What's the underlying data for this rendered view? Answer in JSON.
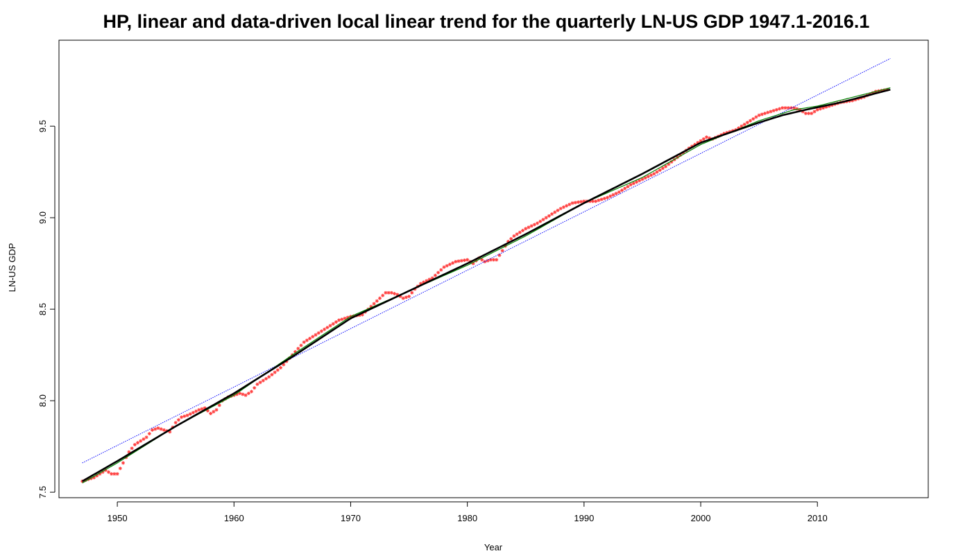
{
  "chart_data": {
    "type": "line",
    "title": "HP, linear and data-driven local linear trend for the quarterly LN-US GDP 1947.1-2016.1",
    "xlabel": "Year",
    "ylabel": "LN-US GDP",
    "xlim": [
      1945,
      2019.5
    ],
    "ylim": [
      7.47,
      9.97
    ],
    "xticks": [
      1950,
      1960,
      1970,
      1980,
      1990,
      2000,
      2010
    ],
    "xtick_labels": [
      "1950",
      "1960",
      "1970",
      "1980",
      "1990",
      "2000",
      "2010"
    ],
    "yticks": [
      7.5,
      8.0,
      8.5,
      9.0,
      9.5
    ],
    "ytick_labels": [
      "7.5",
      "8.0",
      "8.5",
      "9.0",
      "9.5"
    ],
    "grid": false,
    "series": [
      {
        "role": "observed",
        "color": "#ff4040",
        "style": "points",
        "x": [
          1947.0,
          1948.0,
          1949.0,
          1949.5,
          1950.0,
          1950.5,
          1951.0,
          1951.5,
          1952.0,
          1952.5,
          1953.0,
          1953.5,
          1954.0,
          1954.5,
          1955.0,
          1955.5,
          1956.0,
          1957.0,
          1957.5,
          1958.0,
          1958.5,
          1959.0,
          1959.5,
          1960.0,
          1960.5,
          1961.0,
          1961.5,
          1962.0,
          1963.0,
          1964.0,
          1965.0,
          1966.0,
          1967.0,
          1968.0,
          1969.0,
          1970.0,
          1971.0,
          1972.0,
          1973.0,
          1973.5,
          1974.0,
          1974.5,
          1975.0,
          1975.5,
          1976.0,
          1977.0,
          1978.0,
          1979.0,
          1980.0,
          1980.5,
          1981.0,
          1981.5,
          1982.0,
          1982.5,
          1983.0,
          1983.5,
          1984.0,
          1985.0,
          1986.0,
          1987.0,
          1988.0,
          1989.0,
          1990.0,
          1990.5,
          1991.0,
          1992.0,
          1993.0,
          1994.0,
          1995.0,
          1996.0,
          1997.0,
          1998.0,
          1999.0,
          2000.0,
          2000.5,
          2001.0,
          2002.0,
          2003.0,
          2004.0,
          2005.0,
          2006.0,
          2007.0,
          2008.0,
          2008.5,
          2009.0,
          2009.5,
          2010.0,
          2011.0,
          2012.0,
          2013.0,
          2014.0,
          2015.0,
          2016.0
        ],
        "y": [
          7.56,
          7.58,
          7.62,
          7.6,
          7.6,
          7.66,
          7.72,
          7.76,
          7.78,
          7.8,
          7.84,
          7.85,
          7.84,
          7.83,
          7.88,
          7.91,
          7.92,
          7.95,
          7.96,
          7.93,
          7.95,
          8.0,
          8.02,
          8.03,
          8.04,
          8.03,
          8.05,
          8.09,
          8.13,
          8.18,
          8.25,
          8.32,
          8.36,
          8.4,
          8.44,
          8.46,
          8.47,
          8.53,
          8.59,
          8.59,
          8.58,
          8.56,
          8.57,
          8.61,
          8.64,
          8.67,
          8.73,
          8.76,
          8.77,
          8.75,
          8.78,
          8.76,
          8.77,
          8.77,
          8.82,
          8.87,
          8.9,
          8.94,
          8.97,
          9.01,
          9.05,
          9.08,
          9.09,
          9.09,
          9.09,
          9.11,
          9.14,
          9.18,
          9.21,
          9.24,
          9.28,
          9.33,
          9.38,
          9.42,
          9.44,
          9.43,
          9.46,
          9.48,
          9.52,
          9.56,
          9.58,
          9.6,
          9.6,
          9.59,
          9.57,
          9.57,
          9.59,
          9.61,
          9.63,
          9.64,
          9.66,
          9.69,
          9.7
        ]
      },
      {
        "role": "linear-trend",
        "color": "#0000ff",
        "style": "dotted",
        "x": [
          1947.0,
          2016.25
        ],
        "y": [
          7.66,
          9.87
        ]
      },
      {
        "role": "hp-trend",
        "color": "#008000",
        "style": "line",
        "x": [
          1947.0,
          1950.0,
          1955.0,
          1960.0,
          1965.0,
          1970.0,
          1975.0,
          1980.0,
          1985.0,
          1990.0,
          1995.0,
          2000.0,
          2005.0,
          2008.0,
          2010.0,
          2016.25
        ],
        "y": [
          7.55,
          7.66,
          7.86,
          8.03,
          8.25,
          8.46,
          8.6,
          8.74,
          8.9,
          9.08,
          9.22,
          9.4,
          9.53,
          9.59,
          9.61,
          9.71
        ]
      },
      {
        "role": "local-linear-trend",
        "color": "#000000",
        "style": "thick-line",
        "x": [
          1947.0,
          1950.0,
          1955.0,
          1960.0,
          1965.0,
          1970.0,
          1975.0,
          1980.0,
          1985.0,
          1990.0,
          1995.0,
          2000.0,
          2005.0,
          2007.0,
          2009.0,
          2012.0,
          2016.25
        ],
        "y": [
          7.56,
          7.67,
          7.86,
          8.04,
          8.24,
          8.45,
          8.6,
          8.75,
          8.91,
          9.08,
          9.24,
          9.41,
          9.52,
          9.56,
          9.59,
          9.63,
          9.7
        ]
      }
    ]
  }
}
